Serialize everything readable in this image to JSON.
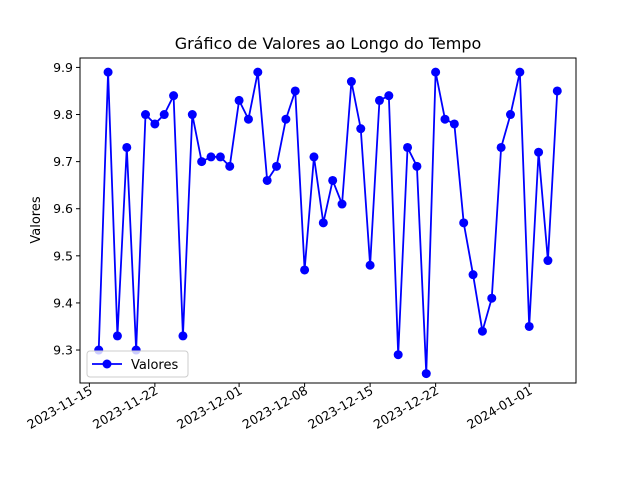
{
  "chart_data": {
    "type": "line",
    "title": "Gráfico de Valores ao Longo do Tempo",
    "xlabel": "",
    "ylabel": "Valores",
    "ylim": [
      9.23,
      9.92
    ],
    "xlim": [
      "2023-11-14",
      "2024-01-06"
    ],
    "y_ticks": [
      9.3,
      9.4,
      9.5,
      9.6,
      9.7,
      9.8,
      9.9
    ],
    "x_ticks": [
      "2023-11-15",
      "2023-11-22",
      "2023-12-01",
      "2023-12-08",
      "2023-12-15",
      "2023-12-22",
      "2024-01-01"
    ],
    "grid": false,
    "legend_position": "bottom-left",
    "color": "#0000ff",
    "series": [
      {
        "name": "Valores",
        "x": [
          "2023-11-16",
          "2023-11-17",
          "2023-11-18",
          "2023-11-19",
          "2023-11-20",
          "2023-11-21",
          "2023-11-22",
          "2023-11-23",
          "2023-11-24",
          "2023-11-25",
          "2023-11-26",
          "2023-11-27",
          "2023-11-28",
          "2023-11-29",
          "2023-11-30",
          "2023-12-01",
          "2023-12-02",
          "2023-12-03",
          "2023-12-04",
          "2023-12-05",
          "2023-12-06",
          "2023-12-07",
          "2023-12-08",
          "2023-12-09",
          "2023-12-10",
          "2023-12-11",
          "2023-12-12",
          "2023-12-13",
          "2023-12-14",
          "2023-12-15",
          "2023-12-16",
          "2023-12-17",
          "2023-12-18",
          "2023-12-19",
          "2023-12-20",
          "2023-12-21",
          "2023-12-22",
          "2023-12-23",
          "2023-12-24",
          "2023-12-25",
          "2023-12-26",
          "2023-12-27",
          "2023-12-28",
          "2023-12-29",
          "2023-12-30",
          "2023-12-31",
          "2024-01-01",
          "2024-01-02",
          "2024-01-03",
          "2024-01-04"
        ],
        "values": [
          9.3,
          9.89,
          9.33,
          9.73,
          9.3,
          9.8,
          9.78,
          9.8,
          9.84,
          9.33,
          9.8,
          9.7,
          9.71,
          9.71,
          9.69,
          9.83,
          9.79,
          9.89,
          9.66,
          9.69,
          9.79,
          9.85,
          9.47,
          9.71,
          9.57,
          9.66,
          9.61,
          9.87,
          9.77,
          9.48,
          9.83,
          9.84,
          9.29,
          9.73,
          9.69,
          9.25,
          9.89,
          9.79,
          9.78,
          9.57,
          9.46,
          9.34,
          9.41,
          9.73,
          9.8,
          9.89,
          9.35,
          9.72,
          9.49,
          9.85
        ]
      }
    ]
  }
}
